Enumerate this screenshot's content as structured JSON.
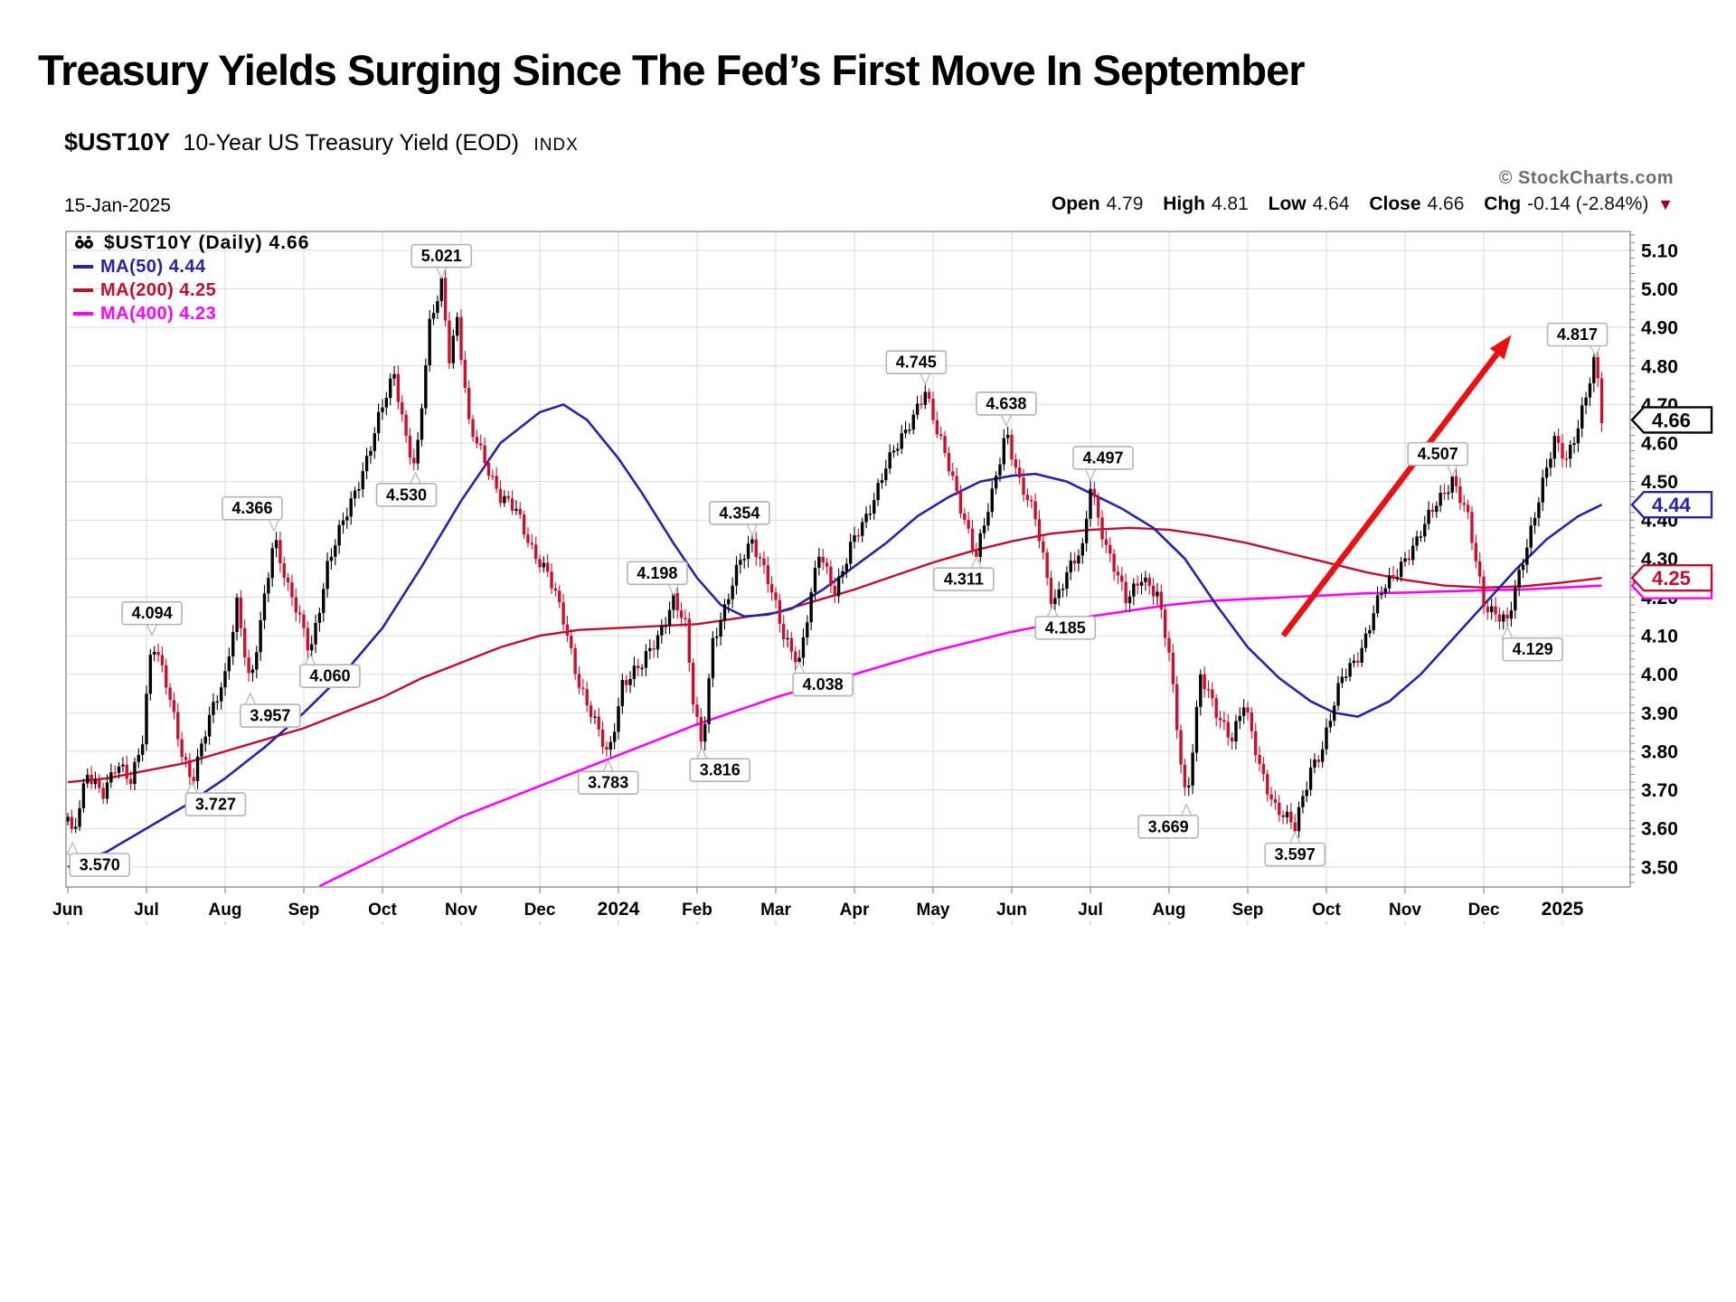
{
  "slide": {
    "title": "Treasury Yields Surging Since The Fed’s First Move In September"
  },
  "chart_header": {
    "symbol": "$UST10Y",
    "description": "10-Year US Treasury Yield (EOD)",
    "exchange": "INDX",
    "credit": "© StockCharts.com",
    "date": "15-Jan-2025",
    "quote": {
      "open_label": "Open",
      "open": "4.79",
      "high_label": "High",
      "high": "4.81",
      "low_label": "Low",
      "low": "4.64",
      "close_label": "Close",
      "close": "4.66",
      "chg_label": "Chg",
      "chg": "-0.14 (-2.84%)",
      "chg_icon": "▼"
    }
  },
  "legend": {
    "main": "$UST10Y (Daily) 4.66",
    "ma50": "MA(50) 4.44",
    "ma200": "MA(200) 4.25",
    "ma400": "MA(400) 4.23"
  },
  "chart_data": {
    "type": "candlestick",
    "symbol": "$UST10Y",
    "title": "10-Year US Treasury Yield (EOD) with 50/200/400-day moving averages",
    "ylim": [
      3.448,
      5.149
    ],
    "y_ticks": [
      3.5,
      3.6,
      3.7,
      3.8,
      3.9,
      4.0,
      4.1,
      4.2,
      4.3,
      4.4,
      4.5,
      4.6,
      4.7,
      4.8,
      4.9,
      5.0,
      5.1
    ],
    "months_span": 19.5,
    "grid": true,
    "x_ticks": [
      {
        "label": "Jun",
        "m": 0
      },
      {
        "label": "Jul",
        "m": 1
      },
      {
        "label": "Aug",
        "m": 2
      },
      {
        "label": "Sep",
        "m": 3
      },
      {
        "label": "Oct",
        "m": 4
      },
      {
        "label": "Nov",
        "m": 5
      },
      {
        "label": "Dec",
        "m": 6
      },
      {
        "label": "2024",
        "m": 7,
        "bold": true
      },
      {
        "label": "Feb",
        "m": 8
      },
      {
        "label": "Mar",
        "m": 9
      },
      {
        "label": "Apr",
        "m": 10
      },
      {
        "label": "May",
        "m": 11
      },
      {
        "label": "Jun",
        "m": 12
      },
      {
        "label": "Jul",
        "m": 13
      },
      {
        "label": "Aug",
        "m": 14
      },
      {
        "label": "Sep",
        "m": 15
      },
      {
        "label": "Oct",
        "m": 16
      },
      {
        "label": "Nov",
        "m": 17
      },
      {
        "label": "Dec",
        "m": 18
      },
      {
        "label": "2025",
        "m": 19,
        "bold": true
      }
    ],
    "yield_path": [
      [
        0,
        3.63
      ],
      [
        0.06,
        3.57
      ],
      [
        0.25,
        3.74
      ],
      [
        0.45,
        3.7
      ],
      [
        0.62,
        3.76
      ],
      [
        0.8,
        3.72
      ],
      [
        0.95,
        3.84
      ],
      [
        1.07,
        4.094
      ],
      [
        1.25,
        3.97
      ],
      [
        1.45,
        3.8
      ],
      [
        1.58,
        3.727
      ],
      [
        1.8,
        3.88
      ],
      [
        2.0,
        4.0
      ],
      [
        2.15,
        4.19
      ],
      [
        2.32,
        3.957
      ],
      [
        2.5,
        4.2
      ],
      [
        2.62,
        4.366
      ],
      [
        2.8,
        4.22
      ],
      [
        3.0,
        4.11
      ],
      [
        3.08,
        4.06
      ],
      [
        3.3,
        4.28
      ],
      [
        3.55,
        4.42
      ],
      [
        3.8,
        4.56
      ],
      [
        4.0,
        4.69
      ],
      [
        4.15,
        4.78
      ],
      [
        4.3,
        4.62
      ],
      [
        4.42,
        4.53
      ],
      [
        4.6,
        4.9
      ],
      [
        4.75,
        5.021
      ],
      [
        4.85,
        4.83
      ],
      [
        4.95,
        4.92
      ],
      [
        5.1,
        4.64
      ],
      [
        5.3,
        4.56
      ],
      [
        5.5,
        4.46
      ],
      [
        5.7,
        4.42
      ],
      [
        5.9,
        4.33
      ],
      [
        6.1,
        4.26
      ],
      [
        6.3,
        4.14
      ],
      [
        6.5,
        3.98
      ],
      [
        6.7,
        3.87
      ],
      [
        6.87,
        3.783
      ],
      [
        7.05,
        3.98
      ],
      [
        7.3,
        4.02
      ],
      [
        7.5,
        4.1
      ],
      [
        7.7,
        4.198
      ],
      [
        7.85,
        4.12
      ],
      [
        7.95,
        3.93
      ],
      [
        8.06,
        3.816
      ],
      [
        8.2,
        4.09
      ],
      [
        8.35,
        4.16
      ],
      [
        8.55,
        4.3
      ],
      [
        8.7,
        4.354
      ],
      [
        8.9,
        4.24
      ],
      [
        9.1,
        4.1
      ],
      [
        9.3,
        4.038
      ],
      [
        9.55,
        4.31
      ],
      [
        9.75,
        4.22
      ],
      [
        9.95,
        4.33
      ],
      [
        10.15,
        4.4
      ],
      [
        10.4,
        4.55
      ],
      [
        10.65,
        4.62
      ],
      [
        10.9,
        4.745
      ],
      [
        11.05,
        4.63
      ],
      [
        11.25,
        4.5
      ],
      [
        11.55,
        4.311
      ],
      [
        11.75,
        4.46
      ],
      [
        11.93,
        4.638
      ],
      [
        12.1,
        4.5
      ],
      [
        12.3,
        4.4
      ],
      [
        12.52,
        4.185
      ],
      [
        12.7,
        4.26
      ],
      [
        12.9,
        4.32
      ],
      [
        13.0,
        4.497
      ],
      [
        13.2,
        4.33
      ],
      [
        13.45,
        4.19
      ],
      [
        13.65,
        4.26
      ],
      [
        13.85,
        4.2
      ],
      [
        14.0,
        4.05
      ],
      [
        14.15,
        3.78
      ],
      [
        14.22,
        3.669
      ],
      [
        14.4,
        3.99
      ],
      [
        14.6,
        3.9
      ],
      [
        14.8,
        3.84
      ],
      [
        14.95,
        3.92
      ],
      [
        15.15,
        3.76
      ],
      [
        15.35,
        3.66
      ],
      [
        15.6,
        3.597
      ],
      [
        15.8,
        3.76
      ],
      [
        15.95,
        3.81
      ],
      [
        16.2,
        3.99
      ],
      [
        16.45,
        4.07
      ],
      [
        16.7,
        4.21
      ],
      [
        16.95,
        4.29
      ],
      [
        17.15,
        4.34
      ],
      [
        17.4,
        4.45
      ],
      [
        17.6,
        4.507
      ],
      [
        17.8,
        4.4
      ],
      [
        18.0,
        4.19
      ],
      [
        18.3,
        4.129
      ],
      [
        18.5,
        4.3
      ],
      [
        18.7,
        4.46
      ],
      [
        18.9,
        4.6
      ],
      [
        19.05,
        4.56
      ],
      [
        19.2,
        4.65
      ],
      [
        19.35,
        4.76
      ],
      [
        19.42,
        4.817
      ],
      [
        19.5,
        4.66
      ]
    ],
    "ma50": [
      [
        0,
        3.5
      ],
      [
        0.5,
        3.54
      ],
      [
        1,
        3.6
      ],
      [
        1.5,
        3.66
      ],
      [
        2,
        3.73
      ],
      [
        2.5,
        3.81
      ],
      [
        3,
        3.9
      ],
      [
        3.5,
        4.0
      ],
      [
        4,
        4.12
      ],
      [
        4.5,
        4.28
      ],
      [
        5,
        4.45
      ],
      [
        5.5,
        4.6
      ],
      [
        6,
        4.68
      ],
      [
        6.3,
        4.7
      ],
      [
        6.6,
        4.66
      ],
      [
        7,
        4.56
      ],
      [
        7.3,
        4.47
      ],
      [
        7.7,
        4.34
      ],
      [
        8,
        4.25
      ],
      [
        8.3,
        4.18
      ],
      [
        8.6,
        4.15
      ],
      [
        8.9,
        4.155
      ],
      [
        9.2,
        4.17
      ],
      [
        9.6,
        4.22
      ],
      [
        10,
        4.28
      ],
      [
        10.4,
        4.34
      ],
      [
        10.8,
        4.41
      ],
      [
        11.2,
        4.46
      ],
      [
        11.6,
        4.5
      ],
      [
        12,
        4.515
      ],
      [
        12.3,
        4.52
      ],
      [
        12.7,
        4.5
      ],
      [
        13,
        4.47
      ],
      [
        13.4,
        4.43
      ],
      [
        13.8,
        4.38
      ],
      [
        14.2,
        4.3
      ],
      [
        14.6,
        4.18
      ],
      [
        15,
        4.07
      ],
      [
        15.4,
        3.99
      ],
      [
        15.8,
        3.93
      ],
      [
        16.1,
        3.9
      ],
      [
        16.4,
        3.89
      ],
      [
        16.8,
        3.93
      ],
      [
        17.2,
        4.0
      ],
      [
        17.6,
        4.09
      ],
      [
        18,
        4.18
      ],
      [
        18.4,
        4.27
      ],
      [
        18.8,
        4.35
      ],
      [
        19.2,
        4.41
      ],
      [
        19.5,
        4.44
      ]
    ],
    "ma200": [
      [
        0,
        3.72
      ],
      [
        0.5,
        3.73
      ],
      [
        1,
        3.75
      ],
      [
        1.5,
        3.77
      ],
      [
        2,
        3.8
      ],
      [
        2.5,
        3.83
      ],
      [
        3,
        3.86
      ],
      [
        3.5,
        3.9
      ],
      [
        4,
        3.94
      ],
      [
        4.5,
        3.99
      ],
      [
        5,
        4.03
      ],
      [
        5.5,
        4.07
      ],
      [
        6,
        4.1
      ],
      [
        6.5,
        4.115
      ],
      [
        7,
        4.12
      ],
      [
        7.5,
        4.125
      ],
      [
        8,
        4.13
      ],
      [
        8.5,
        4.145
      ],
      [
        9,
        4.16
      ],
      [
        9.5,
        4.19
      ],
      [
        10,
        4.22
      ],
      [
        10.5,
        4.255
      ],
      [
        11,
        4.29
      ],
      [
        11.5,
        4.32
      ],
      [
        12,
        4.345
      ],
      [
        12.5,
        4.365
      ],
      [
        13,
        4.375
      ],
      [
        13.5,
        4.38
      ],
      [
        14,
        4.375
      ],
      [
        14.5,
        4.36
      ],
      [
        15,
        4.34
      ],
      [
        15.5,
        4.315
      ],
      [
        16,
        4.29
      ],
      [
        16.5,
        4.265
      ],
      [
        17,
        4.245
      ],
      [
        17.5,
        4.23
      ],
      [
        18,
        4.225
      ],
      [
        18.5,
        4.228
      ],
      [
        19,
        4.238
      ],
      [
        19.5,
        4.25
      ]
    ],
    "ma400": [
      [
        3.2,
        3.45
      ],
      [
        3.6,
        3.49
      ],
      [
        4,
        3.53
      ],
      [
        4.5,
        3.58
      ],
      [
        5,
        3.63
      ],
      [
        5.5,
        3.67
      ],
      [
        6,
        3.71
      ],
      [
        6.5,
        3.75
      ],
      [
        7,
        3.79
      ],
      [
        7.5,
        3.83
      ],
      [
        8,
        3.87
      ],
      [
        8.5,
        3.905
      ],
      [
        9,
        3.94
      ],
      [
        9.5,
        3.97
      ],
      [
        10,
        4.0
      ],
      [
        10.5,
        4.03
      ],
      [
        11,
        4.06
      ],
      [
        11.5,
        4.085
      ],
      [
        12,
        4.11
      ],
      [
        12.5,
        4.13
      ],
      [
        13,
        4.15
      ],
      [
        13.5,
        4.165
      ],
      [
        14,
        4.18
      ],
      [
        14.5,
        4.19
      ],
      [
        15,
        4.195
      ],
      [
        15.5,
        4.2
      ],
      [
        16,
        4.205
      ],
      [
        16.5,
        4.21
      ],
      [
        17,
        4.212
      ],
      [
        17.5,
        4.215
      ],
      [
        18,
        4.218
      ],
      [
        18.5,
        4.22
      ],
      [
        19,
        4.225
      ],
      [
        19.5,
        4.23
      ]
    ],
    "callouts": [
      {
        "label": "3.570",
        "m": 0.06,
        "v": 3.57,
        "pos": "below",
        "dx": 30
      },
      {
        "label": "4.094",
        "m": 1.07,
        "v": 4.094,
        "pos": "above"
      },
      {
        "label": "3.727",
        "m": 1.58,
        "v": 3.727,
        "pos": "below",
        "dx": 26
      },
      {
        "label": "3.957",
        "m": 2.32,
        "v": 3.957,
        "pos": "below",
        "dx": 22
      },
      {
        "label": "4.366",
        "m": 2.62,
        "v": 4.366,
        "pos": "above",
        "dx": -24
      },
      {
        "label": "4.060",
        "m": 3.08,
        "v": 4.06,
        "pos": "below",
        "dx": 22
      },
      {
        "label": "4.530",
        "m": 4.42,
        "v": 4.53,
        "pos": "below",
        "dx": -10
      },
      {
        "label": "5.021",
        "m": 4.75,
        "v": 5.021,
        "pos": "above"
      },
      {
        "label": "3.783",
        "m": 6.87,
        "v": 3.783,
        "pos": "below"
      },
      {
        "label": "4.198",
        "m": 7.7,
        "v": 4.198,
        "pos": "above",
        "dx": -18
      },
      {
        "label": "3.816",
        "m": 8.06,
        "v": 3.816,
        "pos": "below",
        "dx": 20
      },
      {
        "label": "4.354",
        "m": 8.7,
        "v": 4.354,
        "pos": "above",
        "dx": -14
      },
      {
        "label": "4.038",
        "m": 9.3,
        "v": 4.038,
        "pos": "below",
        "dx": 26
      },
      {
        "label": "4.745",
        "m": 10.9,
        "v": 4.745,
        "pos": "above",
        "dx": -10
      },
      {
        "label": "4.311",
        "m": 11.55,
        "v": 4.311,
        "pos": "below",
        "dx": -14
      },
      {
        "label": "4.638",
        "m": 11.93,
        "v": 4.638,
        "pos": "above"
      },
      {
        "label": "4.185",
        "m": 12.52,
        "v": 4.185,
        "pos": "below",
        "dx": 14
      },
      {
        "label": "4.497",
        "m": 13.0,
        "v": 4.497,
        "pos": "above",
        "dx": 14
      },
      {
        "label": "3.669",
        "m": 14.22,
        "v": 3.669,
        "pos": "below",
        "dx": -20
      },
      {
        "label": "3.597",
        "m": 15.6,
        "v": 3.597,
        "pos": "below"
      },
      {
        "label": "4.507",
        "m": 17.6,
        "v": 4.507,
        "pos": "above",
        "dx": -16
      },
      {
        "label": "4.129",
        "m": 18.3,
        "v": 4.129,
        "pos": "below",
        "dx": 28
      },
      {
        "label": "4.817",
        "m": 19.42,
        "v": 4.817,
        "pos": "above",
        "dx": -20
      }
    ],
    "price_tags": [
      {
        "label": "",
        "v": 4.23,
        "color": "#ff00ff"
      },
      {
        "label": "4.25",
        "v": 4.25,
        "color": "#c00e2e"
      },
      {
        "label": "4.44",
        "v": 4.44,
        "color": "#2424aa"
      },
      {
        "label": "4.66",
        "v": 4.66,
        "color": "#000000"
      }
    ],
    "trend_arrow": {
      "from_m": 15.45,
      "from_v": 4.1,
      "to_m": 18.35,
      "to_v": 4.88,
      "color": "#e81010"
    },
    "colors": {
      "candle_up": "#000000",
      "candle_down": "#cc0f2e",
      "ma50": "#2424aa",
      "ma200": "#c00e2e",
      "ma400": "#ff00ff",
      "grid": "#d9d9d9",
      "border": "#999999",
      "callout_border": "#b4b4b4"
    }
  }
}
